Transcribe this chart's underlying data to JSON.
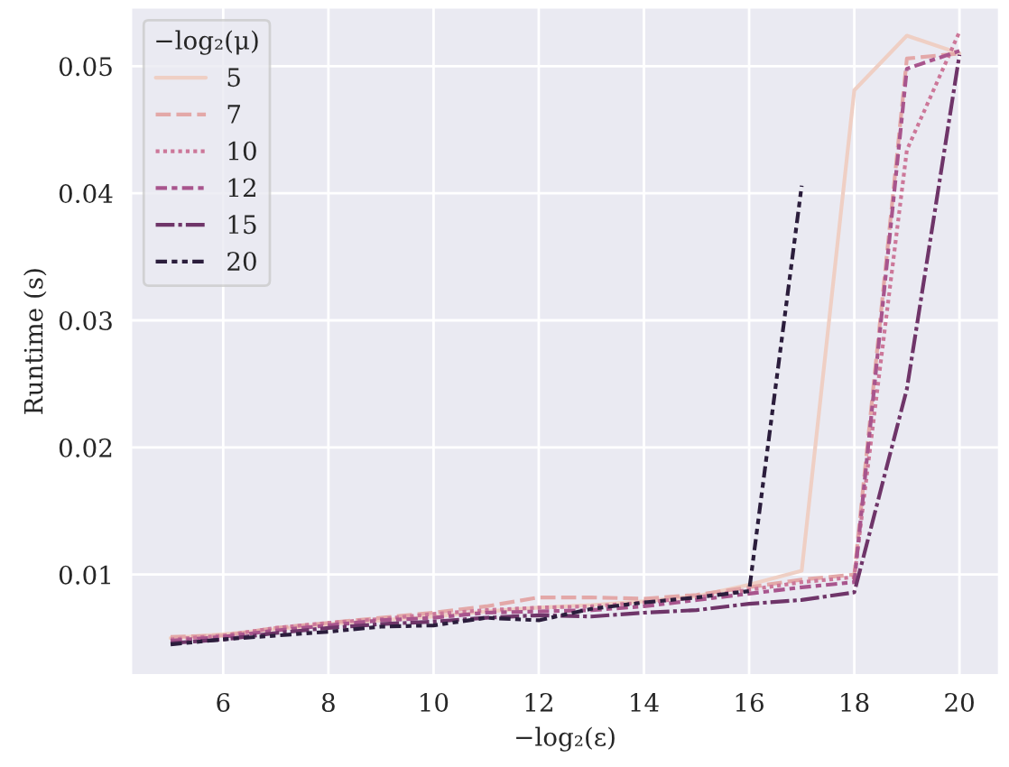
{
  "chart_data": {
    "type": "line",
    "xlabel": "−log₂(ε)",
    "ylabel": "Runtime (s)",
    "legend_title": "−log₂(μ)",
    "legend": "top left",
    "grid": true,
    "xlim": [
      4.25,
      20.75
    ],
    "ylim": [
      0.0021,
      0.0546
    ],
    "xticks": [
      6,
      8,
      10,
      12,
      14,
      16,
      18,
      20
    ],
    "yticks": [
      0.01,
      0.02,
      0.03,
      0.04,
      0.05
    ],
    "series": [
      {
        "name": "5",
        "color": "#efcfc4",
        "line_style": "solid",
        "x": [
          5,
          6,
          7,
          8,
          9,
          10,
          11,
          12,
          13,
          14,
          15,
          16,
          17,
          18,
          19,
          20
        ],
        "values": [
          0.005,
          0.0053,
          0.0057,
          0.0061,
          0.0064,
          0.0067,
          0.0071,
          0.0074,
          0.0076,
          0.0079,
          0.0083,
          0.0092,
          0.0103,
          0.0481,
          0.0524,
          0.051
        ]
      },
      {
        "name": "7",
        "color": "#e3a8a8",
        "line_style": "dashed",
        "x": [
          5,
          6,
          7,
          8,
          9,
          10,
          11,
          12,
          13,
          14,
          15,
          16,
          17,
          18,
          19,
          20
        ],
        "values": [
          0.0051,
          0.0052,
          0.0058,
          0.0062,
          0.0066,
          0.007,
          0.0075,
          0.0082,
          0.0082,
          0.0081,
          0.0084,
          0.009,
          0.0096,
          0.01,
          0.0506,
          0.051
        ]
      },
      {
        "name": "10",
        "color": "#cc7799",
        "line_style": "dotted",
        "x": [
          5,
          6,
          7,
          8,
          9,
          10,
          11,
          12,
          13,
          14,
          15,
          16,
          17,
          18,
          19,
          20
        ],
        "values": [
          0.0049,
          0.0052,
          0.0058,
          0.0062,
          0.0065,
          0.0069,
          0.0072,
          0.0074,
          0.0075,
          0.0078,
          0.0082,
          0.0088,
          0.0094,
          0.0098,
          0.0434,
          0.0527
        ]
      },
      {
        "name": "12",
        "color": "#a8558d",
        "line_style": "dashdot",
        "x": [
          5,
          6,
          7,
          8,
          9,
          10,
          11,
          12,
          13,
          14,
          15,
          16,
          17,
          18,
          19,
          20
        ],
        "values": [
          0.0048,
          0.0051,
          0.0056,
          0.006,
          0.0064,
          0.0066,
          0.007,
          0.0071,
          0.0072,
          0.0075,
          0.008,
          0.0085,
          0.009,
          0.0094,
          0.0498,
          0.0512
        ]
      },
      {
        "name": "15",
        "color": "#6f3569",
        "line_style": "longdashdot",
        "x": [
          5,
          6,
          7,
          8,
          9,
          10,
          11,
          12,
          13,
          14,
          15,
          16,
          17,
          18,
          19,
          20
        ],
        "values": [
          0.0046,
          0.0049,
          0.0054,
          0.0058,
          0.0061,
          0.0063,
          0.0066,
          0.0068,
          0.0067,
          0.007,
          0.0072,
          0.0077,
          0.008,
          0.0086,
          0.0246,
          0.0509
        ]
      },
      {
        "name": "20",
        "color": "#2b1d3c",
        "line_style": "dashdotdot",
        "x": [
          5,
          6,
          7,
          8,
          9,
          10,
          11,
          12,
          13,
          14,
          15,
          16,
          17
        ],
        "values": [
          0.0045,
          0.0049,
          0.0052,
          0.0055,
          0.0059,
          0.006,
          0.0066,
          0.0064,
          0.0073,
          0.0078,
          0.0082,
          0.0087,
          0.0406
        ]
      }
    ]
  }
}
